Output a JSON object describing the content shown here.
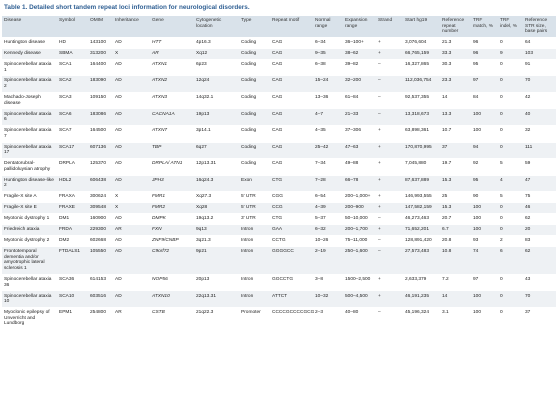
{
  "title": {
    "label": "Table 1.",
    "text": "Detailed short tandem repeat loci information for neurological disorders."
  },
  "table": {
    "headers": [
      "Disease",
      "Symbol",
      "OMIM",
      "Inheritance",
      "Gene",
      "Cytogenetic location",
      "Type",
      "Repeat motif",
      "Normal range",
      "Expansion range",
      "Strand",
      "Start hg19",
      "Reference repeat number",
      "TRF match, %",
      "TRF indel, %",
      "Reference STR size, base pairs"
    ],
    "rows": [
      [
        "Huntington disease",
        "HD",
        "143100",
        "AD",
        "HTT",
        "4p16.3",
        "Coding",
        "CAG",
        "6–34",
        "36–100+",
        "+",
        "3,076,604",
        "21.3",
        "96",
        "0",
        "64"
      ],
      [
        "Kennedy disease",
        "SBMA",
        "313200",
        "X",
        "AR",
        "Xq12",
        "Coding",
        "CAG",
        "9–35",
        "38–62",
        "+",
        "66,765,159",
        "33.3",
        "96",
        "9",
        "103"
      ],
      [
        "Spinocerebellar ataxia 1",
        "SCA1",
        "164400",
        "AD",
        "ATXN1",
        "6p23",
        "Coding",
        "CAG",
        "6–38",
        "39–82",
        "–",
        "16,327,865",
        "30.3",
        "95",
        "0",
        "91"
      ],
      [
        "Spinocerebellar ataxia 2",
        "SCA2",
        "183090",
        "AD",
        "ATXN2",
        "12q24",
        "Coding",
        "CAG",
        "15–24",
        "32–200",
        "–",
        "112,036,754",
        "23.3",
        "97",
        "0",
        "70"
      ],
      [
        "Machado-Joseph disease",
        "SCA3",
        "109150",
        "AD",
        "ATXN3",
        "14q32.1",
        "Coding",
        "CAG",
        "13–36",
        "61–84",
        "–",
        "92,537,355",
        "14",
        "84",
        "0",
        "42"
      ],
      [
        "Spinocerebellar ataxia 6",
        "SCA6",
        "183086",
        "AD",
        "CACNA1A",
        "19p13",
        "Coding",
        "CAG",
        "4–7",
        "21–33",
        "–",
        "13,318,673",
        "13.3",
        "100",
        "0",
        "40"
      ],
      [
        "Spinocerebellar ataxia 7",
        "SCA7",
        "164500",
        "AD",
        "ATXN7",
        "3p14.1",
        "Coding",
        "CAG",
        "4–35",
        "37–306",
        "+",
        "63,898,361",
        "10.7",
        "100",
        "0",
        "32"
      ],
      [
        "Spinocerebellar ataxia 17",
        "SCA17",
        "607136",
        "AD",
        "TBP",
        "6q27",
        "Coding",
        "CAG",
        "25–42",
        "47–63",
        "+",
        "170,870,995",
        "37",
        "94",
        "0",
        "111"
      ],
      [
        "Dentatorubral-pallidoluysian atrophy",
        "DRPLA",
        "125370",
        "AD",
        "DRPLA/ ATN1",
        "12p13.31",
        "Coding",
        "CAG",
        "7–34",
        "49–88",
        "+",
        "7,045,880",
        "19.7",
        "92",
        "5",
        "59"
      ],
      [
        "Huntington disease-like 2",
        "HDL2",
        "606438",
        "AD",
        "JPH3",
        "16q24.3",
        "Exon",
        "CTG",
        "7–28",
        "66–78",
        "+",
        "87,637,889",
        "15.3",
        "95",
        "4",
        "47"
      ],
      [
        "Fragile-X site A",
        "FRAXA",
        "300624",
        "X",
        "FMR1",
        "Xq27.3",
        "5' UTR",
        "CGG",
        "6–54",
        "200–1,000+",
        "+",
        "146,993,555",
        "25",
        "90",
        "5",
        "75"
      ],
      [
        "Fragile-X site E",
        "FRAXE",
        "309548",
        "X",
        "FMR2",
        "Xq28",
        "5' UTR",
        "CCG",
        "4–39",
        "200–900",
        "+",
        "147,582,159",
        "15.3",
        "100",
        "0",
        "46"
      ],
      [
        "Myotonic dystrophy 1",
        "DM1",
        "160900",
        "AD",
        "DMPK",
        "19q13.2",
        "3' UTR",
        "CTG",
        "5–37",
        "50–10,000",
        "–",
        "46,273,463",
        "20.7",
        "100",
        "0",
        "62"
      ],
      [
        "Friedreich ataxia",
        "FRDA",
        "229300",
        "AR",
        "FXN",
        "9q13",
        "Intron",
        "GAA",
        "6–32",
        "200–1,700",
        "+",
        "71,652,201",
        "6.7",
        "100",
        "0",
        "20"
      ],
      [
        "Myotonic dystrophy 2",
        "DM2",
        "602668",
        "AD",
        "ZNF9/CNBP",
        "3q21.3",
        "Intron",
        "CCTG",
        "10–26",
        "75–11,000",
        "–",
        "128,891,420",
        "20.8",
        "93",
        "2",
        "83"
      ],
      [
        "Frontotemporal dementia and/or amyotrophic lateral sclerosis 1",
        "FTDALS1",
        "105550",
        "AD",
        "C9orf72",
        "9p21",
        "Intron",
        "GGGGCC",
        "2–19",
        "250–1,600",
        "–",
        "27,573,483",
        "10.8",
        "74",
        "6",
        "62"
      ],
      [
        "Spinocerebellar ataxia 36",
        "SCA36",
        "614153",
        "AD",
        "NOP56",
        "20p13",
        "Intron",
        "GGCCTG",
        "3–8",
        "1500–2,500",
        "+",
        "2,633,379",
        "7.2",
        "97",
        "0",
        "43"
      ],
      [
        "Spinocerebellar ataxia 10",
        "SCA10",
        "603516",
        "AD",
        "ATXN10",
        "22q13.31",
        "Intron",
        "ATTCT",
        "10–32",
        "500–4,500",
        "+",
        "46,191,235",
        "14",
        "100",
        "0",
        "70"
      ],
      [
        "Myoclonic epilepsy of Unverricht and Lundborg",
        "EPM1",
        "254800",
        "AR",
        "CSTB",
        "21q22.3",
        "Promoter",
        "CCCCGCCCCGCG",
        "2–3",
        "40–80",
        "–",
        "45,196,324",
        "3.1",
        "100",
        "0",
        "37"
      ]
    ]
  }
}
